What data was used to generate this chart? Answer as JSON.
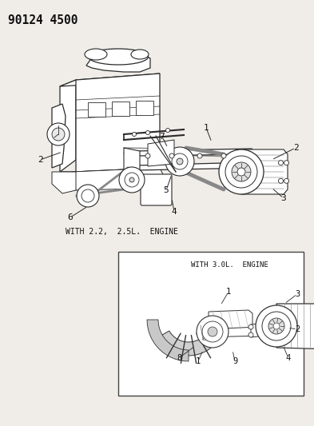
{
  "title": "90124 4500",
  "bg_color": "#f0ede8",
  "caption1": "WITH 2.2,  2.5L.  ENGINE",
  "caption2": "WITH 3.0L.  ENGINE",
  "fig_width": 3.93,
  "fig_height": 5.33,
  "dpi": 100
}
